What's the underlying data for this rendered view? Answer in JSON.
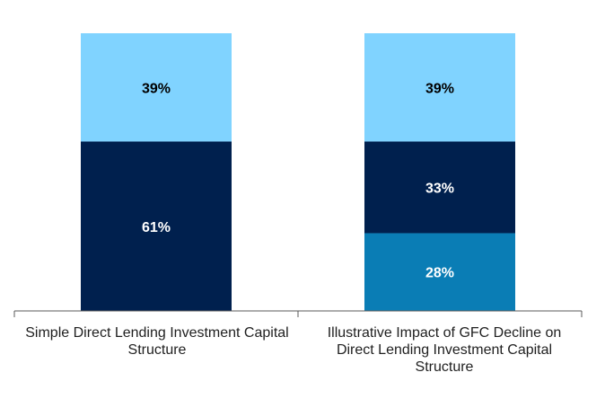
{
  "chart_data": {
    "type": "bar",
    "stacked": true,
    "categories": [
      "Simple Direct Lending Investment Capital Structure",
      "Illustrative Impact of GFC Decline on Direct Lending Investment Capital Structure"
    ],
    "stacks": [
      {
        "category": "Simple Direct Lending Investment Capital Structure",
        "segments": [
          {
            "value": 61,
            "label": "61%",
            "color": "#00204e",
            "label_color": "#ffffff"
          },
          {
            "value": 39,
            "label": "39%",
            "color": "#80d3ff",
            "label_color": "#000000"
          }
        ]
      },
      {
        "category": "Illustrative Impact of GFC Decline on Direct Lending Investment Capital Structure",
        "segments": [
          {
            "value": 28,
            "label": "28%",
            "color": "#0a7db5",
            "label_color": "#ffffff"
          },
          {
            "value": 33,
            "label": "33%",
            "color": "#00204e",
            "label_color": "#ffffff"
          },
          {
            "value": 39,
            "label": "39%",
            "color": "#80d3ff",
            "label_color": "#000000"
          }
        ]
      }
    ],
    "ylim": [
      0,
      100
    ],
    "grid": false,
    "legend": "none",
    "axis_color": "#595959"
  }
}
